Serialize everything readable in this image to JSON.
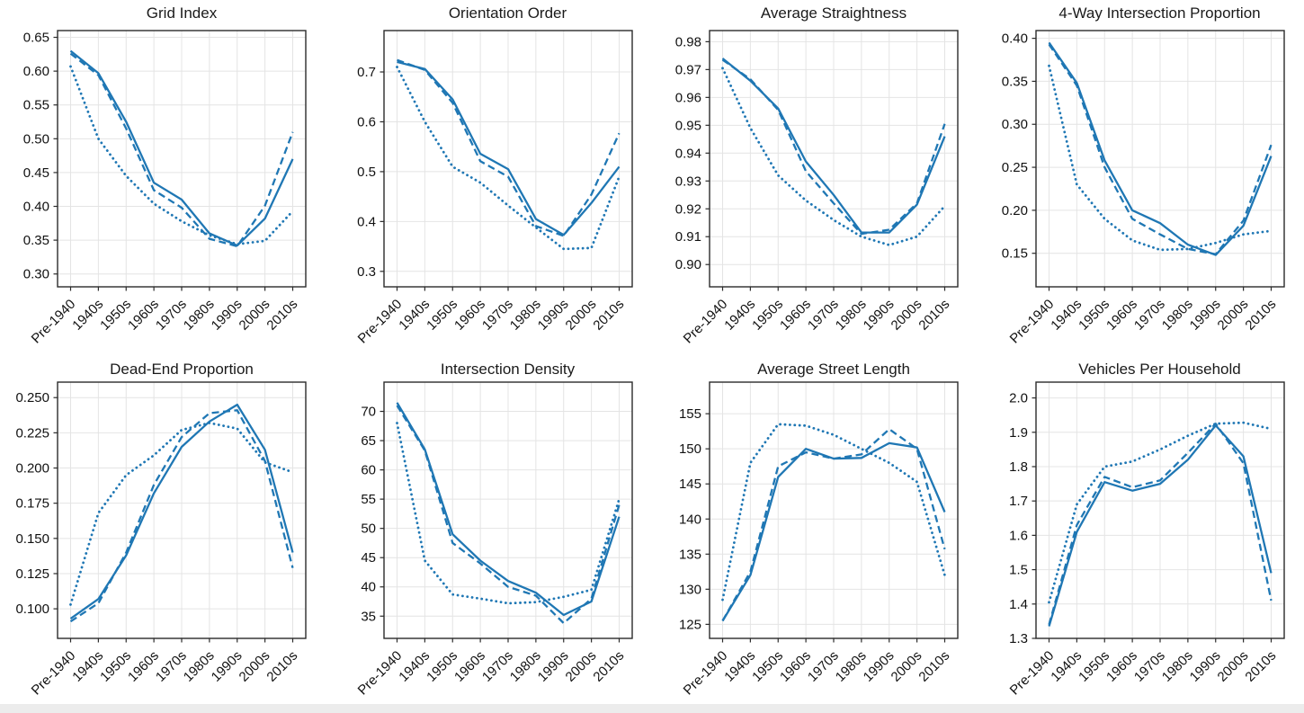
{
  "figure": {
    "colors": {
      "line": "#1f77b4",
      "grid": "#e4e4e4",
      "axis": "#2b2b2b",
      "text": "#111111",
      "background": "#ffffff",
      "edge_strip": "#ececec"
    }
  },
  "categories": [
    "Pre-1940",
    "1940s",
    "1950s",
    "1960s",
    "1970s",
    "1980s",
    "1990s",
    "2000s",
    "2010s"
  ],
  "chart_data": [
    {
      "type": "line",
      "title": "Grid Index",
      "ylim": [
        0.281,
        0.66
      ],
      "yticks": [
        "0.30",
        "0.35",
        "0.40",
        "0.45",
        "0.50",
        "0.55",
        "0.60",
        "0.65"
      ],
      "grid": true,
      "legend": "none",
      "series": [
        {
          "name": "solid",
          "style": "solid",
          "values": [
            0.63,
            0.597,
            0.525,
            0.435,
            0.41,
            0.36,
            0.342,
            0.382,
            0.47
          ]
        },
        {
          "name": "dashed",
          "style": "dashed",
          "values": [
            0.626,
            0.594,
            0.515,
            0.424,
            0.398,
            0.352,
            0.341,
            0.401,
            0.51
          ]
        },
        {
          "name": "dotted",
          "style": "dotted",
          "values": [
            0.607,
            0.5,
            0.445,
            0.404,
            0.378,
            0.357,
            0.344,
            0.349,
            0.393
          ]
        }
      ]
    },
    {
      "type": "line",
      "title": "Orientation Order",
      "ylim": [
        0.269,
        0.783
      ],
      "yticks": [
        "0.3",
        "0.4",
        "0.5",
        "0.6",
        "0.7"
      ],
      "grid": true,
      "legend": "none",
      "series": [
        {
          "name": "solid",
          "style": "solid",
          "values": [
            0.72,
            0.706,
            0.645,
            0.536,
            0.505,
            0.405,
            0.373,
            0.437,
            0.51
          ]
        },
        {
          "name": "dashed",
          "style": "dashed",
          "values": [
            0.724,
            0.704,
            0.638,
            0.521,
            0.49,
            0.391,
            0.371,
            0.454,
            0.577
          ]
        },
        {
          "name": "dotted",
          "style": "dotted",
          "values": [
            0.71,
            0.6,
            0.51,
            0.478,
            0.432,
            0.388,
            0.345,
            0.347,
            0.49
          ]
        }
      ]
    },
    {
      "type": "line",
      "title": "Average Straightness",
      "ylim": [
        0.892,
        0.984
      ],
      "yticks": [
        "0.90",
        "0.91",
        "0.92",
        "0.93",
        "0.94",
        "0.95",
        "0.96",
        "0.97",
        "0.98"
      ],
      "grid": true,
      "legend": "none",
      "series": [
        {
          "name": "solid",
          "style": "solid",
          "values": [
            0.974,
            0.966,
            0.956,
            0.937,
            0.925,
            0.9115,
            0.9115,
            0.9215,
            0.946
          ]
        },
        {
          "name": "dashed",
          "style": "dashed",
          "values": [
            0.9735,
            0.9665,
            0.9555,
            0.9335,
            0.922,
            0.911,
            0.9125,
            0.922,
            0.9505
          ]
        },
        {
          "name": "dotted",
          "style": "dotted",
          "values": [
            0.9705,
            0.949,
            0.932,
            0.923,
            0.916,
            0.91,
            0.907,
            0.91,
            0.921
          ]
        }
      ]
    },
    {
      "type": "line",
      "title": "4-Way Intersection Proportion",
      "ylim": [
        0.111,
        0.409
      ],
      "yticks": [
        "0.15",
        "0.20",
        "0.25",
        "0.30",
        "0.35",
        "0.40"
      ],
      "grid": true,
      "legend": "none",
      "series": [
        {
          "name": "solid",
          "style": "solid",
          "values": [
            0.395,
            0.348,
            0.258,
            0.2,
            0.185,
            0.16,
            0.148,
            0.182,
            0.263
          ]
        },
        {
          "name": "dashed",
          "style": "dashed",
          "values": [
            0.393,
            0.345,
            0.25,
            0.19,
            0.172,
            0.155,
            0.149,
            0.188,
            0.276
          ]
        },
        {
          "name": "dotted",
          "style": "dotted",
          "values": [
            0.368,
            0.23,
            0.19,
            0.165,
            0.154,
            0.155,
            0.162,
            0.172,
            0.176
          ]
        }
      ]
    },
    {
      "type": "line",
      "title": "Dead-End Proportion",
      "ylim": [
        0.079,
        0.261
      ],
      "yticks": [
        "0.100",
        "0.125",
        "0.150",
        "0.175",
        "0.200",
        "0.225",
        "0.250"
      ],
      "grid": true,
      "legend": "none",
      "series": [
        {
          "name": "solid",
          "style": "solid",
          "values": [
            0.093,
            0.107,
            0.138,
            0.182,
            0.215,
            0.233,
            0.245,
            0.213,
            0.14
          ]
        },
        {
          "name": "dashed",
          "style": "dashed",
          "values": [
            0.091,
            0.104,
            0.14,
            0.188,
            0.222,
            0.239,
            0.241,
            0.205,
            0.129
          ]
        },
        {
          "name": "dotted",
          "style": "dotted",
          "values": [
            0.103,
            0.168,
            0.195,
            0.209,
            0.227,
            0.232,
            0.228,
            0.204,
            0.197
          ]
        }
      ]
    },
    {
      "type": "line",
      "title": "Intersection Density",
      "ylim": [
        31.2,
        75.0
      ],
      "yticks": [
        "35",
        "40",
        "45",
        "50",
        "55",
        "60",
        "65",
        "70"
      ],
      "grid": true,
      "legend": "none",
      "series": [
        {
          "name": "solid",
          "style": "solid",
          "values": [
            71.5,
            63.5,
            49.0,
            44.5,
            41.0,
            39.0,
            35.2,
            37.5,
            52.0
          ]
        },
        {
          "name": "dashed",
          "style": "dashed",
          "values": [
            71.0,
            63.3,
            47.5,
            44.0,
            40.0,
            38.5,
            33.8,
            38.0,
            54.0
          ]
        },
        {
          "name": "dotted",
          "style": "dotted",
          "values": [
            68.0,
            44.5,
            38.7,
            38.0,
            37.2,
            37.4,
            38.3,
            39.5,
            55.0
          ]
        }
      ]
    },
    {
      "type": "line",
      "title": "Average Street Length",
      "ylim": [
        123.0,
        159.5
      ],
      "yticks": [
        "125",
        "130",
        "135",
        "140",
        "145",
        "150",
        "155"
      ],
      "grid": true,
      "legend": "none",
      "series": [
        {
          "name": "solid",
          "style": "solid",
          "values": [
            125.5,
            132.0,
            146.0,
            150.0,
            148.6,
            148.7,
            150.8,
            150.2,
            141.0
          ]
        },
        {
          "name": "dashed",
          "style": "dashed",
          "values": [
            125.5,
            132.5,
            147.5,
            149.5,
            148.6,
            149.2,
            152.8,
            150.0,
            135.7
          ]
        },
        {
          "name": "dotted",
          "style": "dotted",
          "values": [
            128.5,
            148.0,
            153.5,
            153.3,
            152.0,
            150.0,
            148.0,
            145.3,
            132.0
          ]
        }
      ]
    },
    {
      "type": "line",
      "title": "Vehicles Per Household",
      "ylim": [
        1.3,
        2.046
      ],
      "yticks": [
        "1.3",
        "1.4",
        "1.5",
        "1.6",
        "1.7",
        "1.8",
        "1.9",
        "2.0"
      ],
      "grid": true,
      "legend": "none",
      "series": [
        {
          "name": "solid",
          "style": "solid",
          "values": [
            1.335,
            1.61,
            1.755,
            1.73,
            1.75,
            1.82,
            1.92,
            1.83,
            1.49
          ]
        },
        {
          "name": "dashed",
          "style": "dashed",
          "values": [
            1.34,
            1.63,
            1.77,
            1.74,
            1.76,
            1.84,
            1.925,
            1.81,
            1.41
          ]
        },
        {
          "name": "dotted",
          "style": "dotted",
          "values": [
            1.405,
            1.69,
            1.8,
            1.815,
            1.85,
            1.89,
            1.925,
            1.928,
            1.91
          ]
        }
      ]
    }
  ]
}
